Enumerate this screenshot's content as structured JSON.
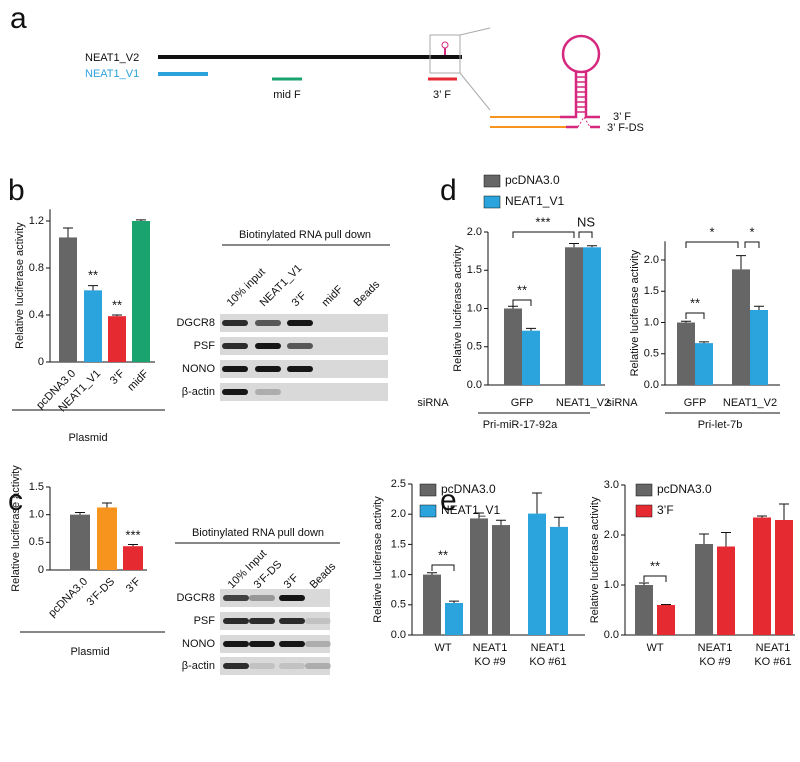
{
  "panel_labels": [
    "a",
    "b",
    "c",
    "d",
    "e"
  ],
  "diagram": {
    "transcripts": [
      "NEAT1_V2",
      "NEAT1_V1"
    ],
    "fragments": [
      "mid F",
      "3’ F"
    ],
    "constructs": [
      "3’ F",
      "3’ F-DS"
    ]
  },
  "blots": [
    {
      "title": "Biotinylated RNA pull down",
      "lanes": [
        "10% input",
        "NEAT1_V1",
        "3’F",
        "midF",
        "Beads"
      ],
      "rows": [
        "DGCR8",
        "PSF",
        "NONO",
        "β-actin"
      ]
    },
    {
      "title": "Biotinylated RNA pull down",
      "lanes": [
        "10% Input",
        "3’F-DS",
        "3’F",
        "Beads"
      ],
      "rows": [
        "DGCR8",
        "PSF",
        "NONO",
        "β-actin"
      ]
    }
  ],
  "chart_data": [
    {
      "type": "bar",
      "ylabel": "Relative luciferase activity",
      "xlabel": "Plasmid",
      "categories": [
        "pcDNA3.0",
        "NEAT1_V1",
        "3’F",
        "midF"
      ],
      "values": [
        1.06,
        0.61,
        0.39,
        1.2
      ],
      "errors": [
        0.08,
        0.04,
        0.01,
        0.01
      ],
      "colors": [
        "#666666",
        "#2ba3dd",
        "#e52a32",
        "#1aa36f"
      ],
      "ylim": [
        0,
        1.3
      ],
      "yticks": [
        0,
        0.4,
        0.8,
        1.2
      ],
      "annotations": [
        "**",
        "**"
      ]
    },
    {
      "type": "bar",
      "ylabel": "Relative luciferase activity",
      "xlabel": "Plasmid",
      "categories": [
        "pcDNA3.0",
        "3’F-DS",
        "3’F"
      ],
      "values": [
        1.0,
        1.13,
        0.43
      ],
      "errors": [
        0.04,
        0.08,
        0.03
      ],
      "colors": [
        "#666666",
        "#f7941d",
        "#e52a32"
      ],
      "ylim": [
        0,
        1.5
      ],
      "yticks": [
        0,
        0.5,
        {
          "value": 1,
          "label": "1.0"
        },
        1.5
      ],
      "annotations": [
        "***"
      ]
    },
    {
      "type": "bar",
      "ylabel": "Relative luciferase activity",
      "x_prefix": "siRNA",
      "xlabel": "Pri-miR-17-92a",
      "categories": [
        "GFP",
        "NEAT1_V2"
      ],
      "series": [
        {
          "name": "pcDNA3.0",
          "color": "#666666",
          "values": [
            1.0,
            1.8
          ],
          "errors": [
            0.03,
            0.05
          ]
        },
        {
          "name": "NEAT1_V1",
          "color": "#2ba3dd",
          "values": [
            0.71,
            1.8
          ],
          "errors": [
            0.03,
            0.02
          ]
        }
      ],
      "ylim": [
        0,
        2.0
      ],
      "yticks": [
        {
          "value": 0,
          "label": "0.0"
        },
        0.5,
        {
          "value": 1,
          "label": "1.0"
        },
        1.5,
        {
          "value": 2,
          "label": "2.0"
        }
      ],
      "annotations": [
        "**",
        "***",
        "NS"
      ]
    },
    {
      "type": "bar",
      "ylabel": "Relative luciferase activity",
      "x_prefix": "siRNA",
      "xlabel": "Pri-let-7b",
      "categories": [
        "GFP",
        "NEAT1_V2"
      ],
      "series": [
        {
          "color": "#666666",
          "values": [
            1.0,
            1.85
          ],
          "errors": [
            0.02,
            0.22
          ]
        },
        {
          "color": "#2ba3dd",
          "values": [
            0.67,
            1.2
          ],
          "errors": [
            0.02,
            0.06
          ]
        }
      ],
      "ylim": [
        0,
        2.3
      ],
      "yticks": [
        {
          "value": 0,
          "label": "0.0"
        },
        0.5,
        {
          "value": 1,
          "label": "1.0"
        },
        1.5,
        {
          "value": 2,
          "label": "2.0"
        }
      ],
      "annotations": [
        "**",
        "*",
        "*"
      ]
    },
    {
      "type": "bar",
      "ylabel": "Relative luciferase activity",
      "categories": [
        "WT",
        "NEAT1 KO #9",
        "NEAT1 KO #61"
      ],
      "series": [
        {
          "name": "pcDNA3.0",
          "color": "#666666",
          "colors": [
            "#666666",
            "#666666",
            "#2ba3dd"
          ],
          "values": [
            1.0,
            1.93,
            2.01
          ],
          "errors": [
            0.03,
            0.09,
            0.34
          ]
        },
        {
          "name": "NEAT1_V1",
          "color": "#2ba3dd",
          "colors": [
            "#2ba3dd",
            "#666666",
            "#2ba3dd"
          ],
          "values": [
            0.53,
            1.82,
            1.79
          ],
          "errors": [
            0.03,
            0.08,
            0.16
          ]
        }
      ],
      "ylim": [
        0,
        2.5
      ],
      "yticks": [
        {
          "value": 0,
          "label": "0.0"
        },
        0.5,
        {
          "value": 1,
          "label": "1.0"
        },
        1.5,
        {
          "value": 2,
          "label": "2.0"
        },
        2.5
      ],
      "annotations": [
        "**"
      ]
    },
    {
      "type": "bar",
      "ylabel": "Relative luciferase activity",
      "categories": [
        "WT",
        "NEAT1 KO #9",
        "NEAT1 KO #61"
      ],
      "series": [
        {
          "name": "pcDNA3.0",
          "color": "#666666",
          "colors": [
            "#666666",
            "#666666",
            "#e52a32"
          ],
          "values": [
            1.0,
            1.82,
            2.35
          ],
          "errors": [
            0.04,
            0.2,
            0.03
          ]
        },
        {
          "name": "3’F",
          "color": "#e52a32",
          "colors": [
            "#e52a32",
            "#e52a32",
            "#e52a32"
          ],
          "values": [
            0.6,
            1.77,
            2.3
          ],
          "errors": [
            0.01,
            0.28,
            0.32
          ]
        }
      ],
      "ylim": [
        0,
        3.0
      ],
      "yticks": [
        {
          "value": 0,
          "label": "0.0"
        },
        {
          "value": 1,
          "label": "1.0"
        },
        {
          "value": 2,
          "label": "2.0"
        },
        {
          "value": 3,
          "label": "3.0"
        }
      ],
      "annotations": [
        "**"
      ]
    }
  ]
}
